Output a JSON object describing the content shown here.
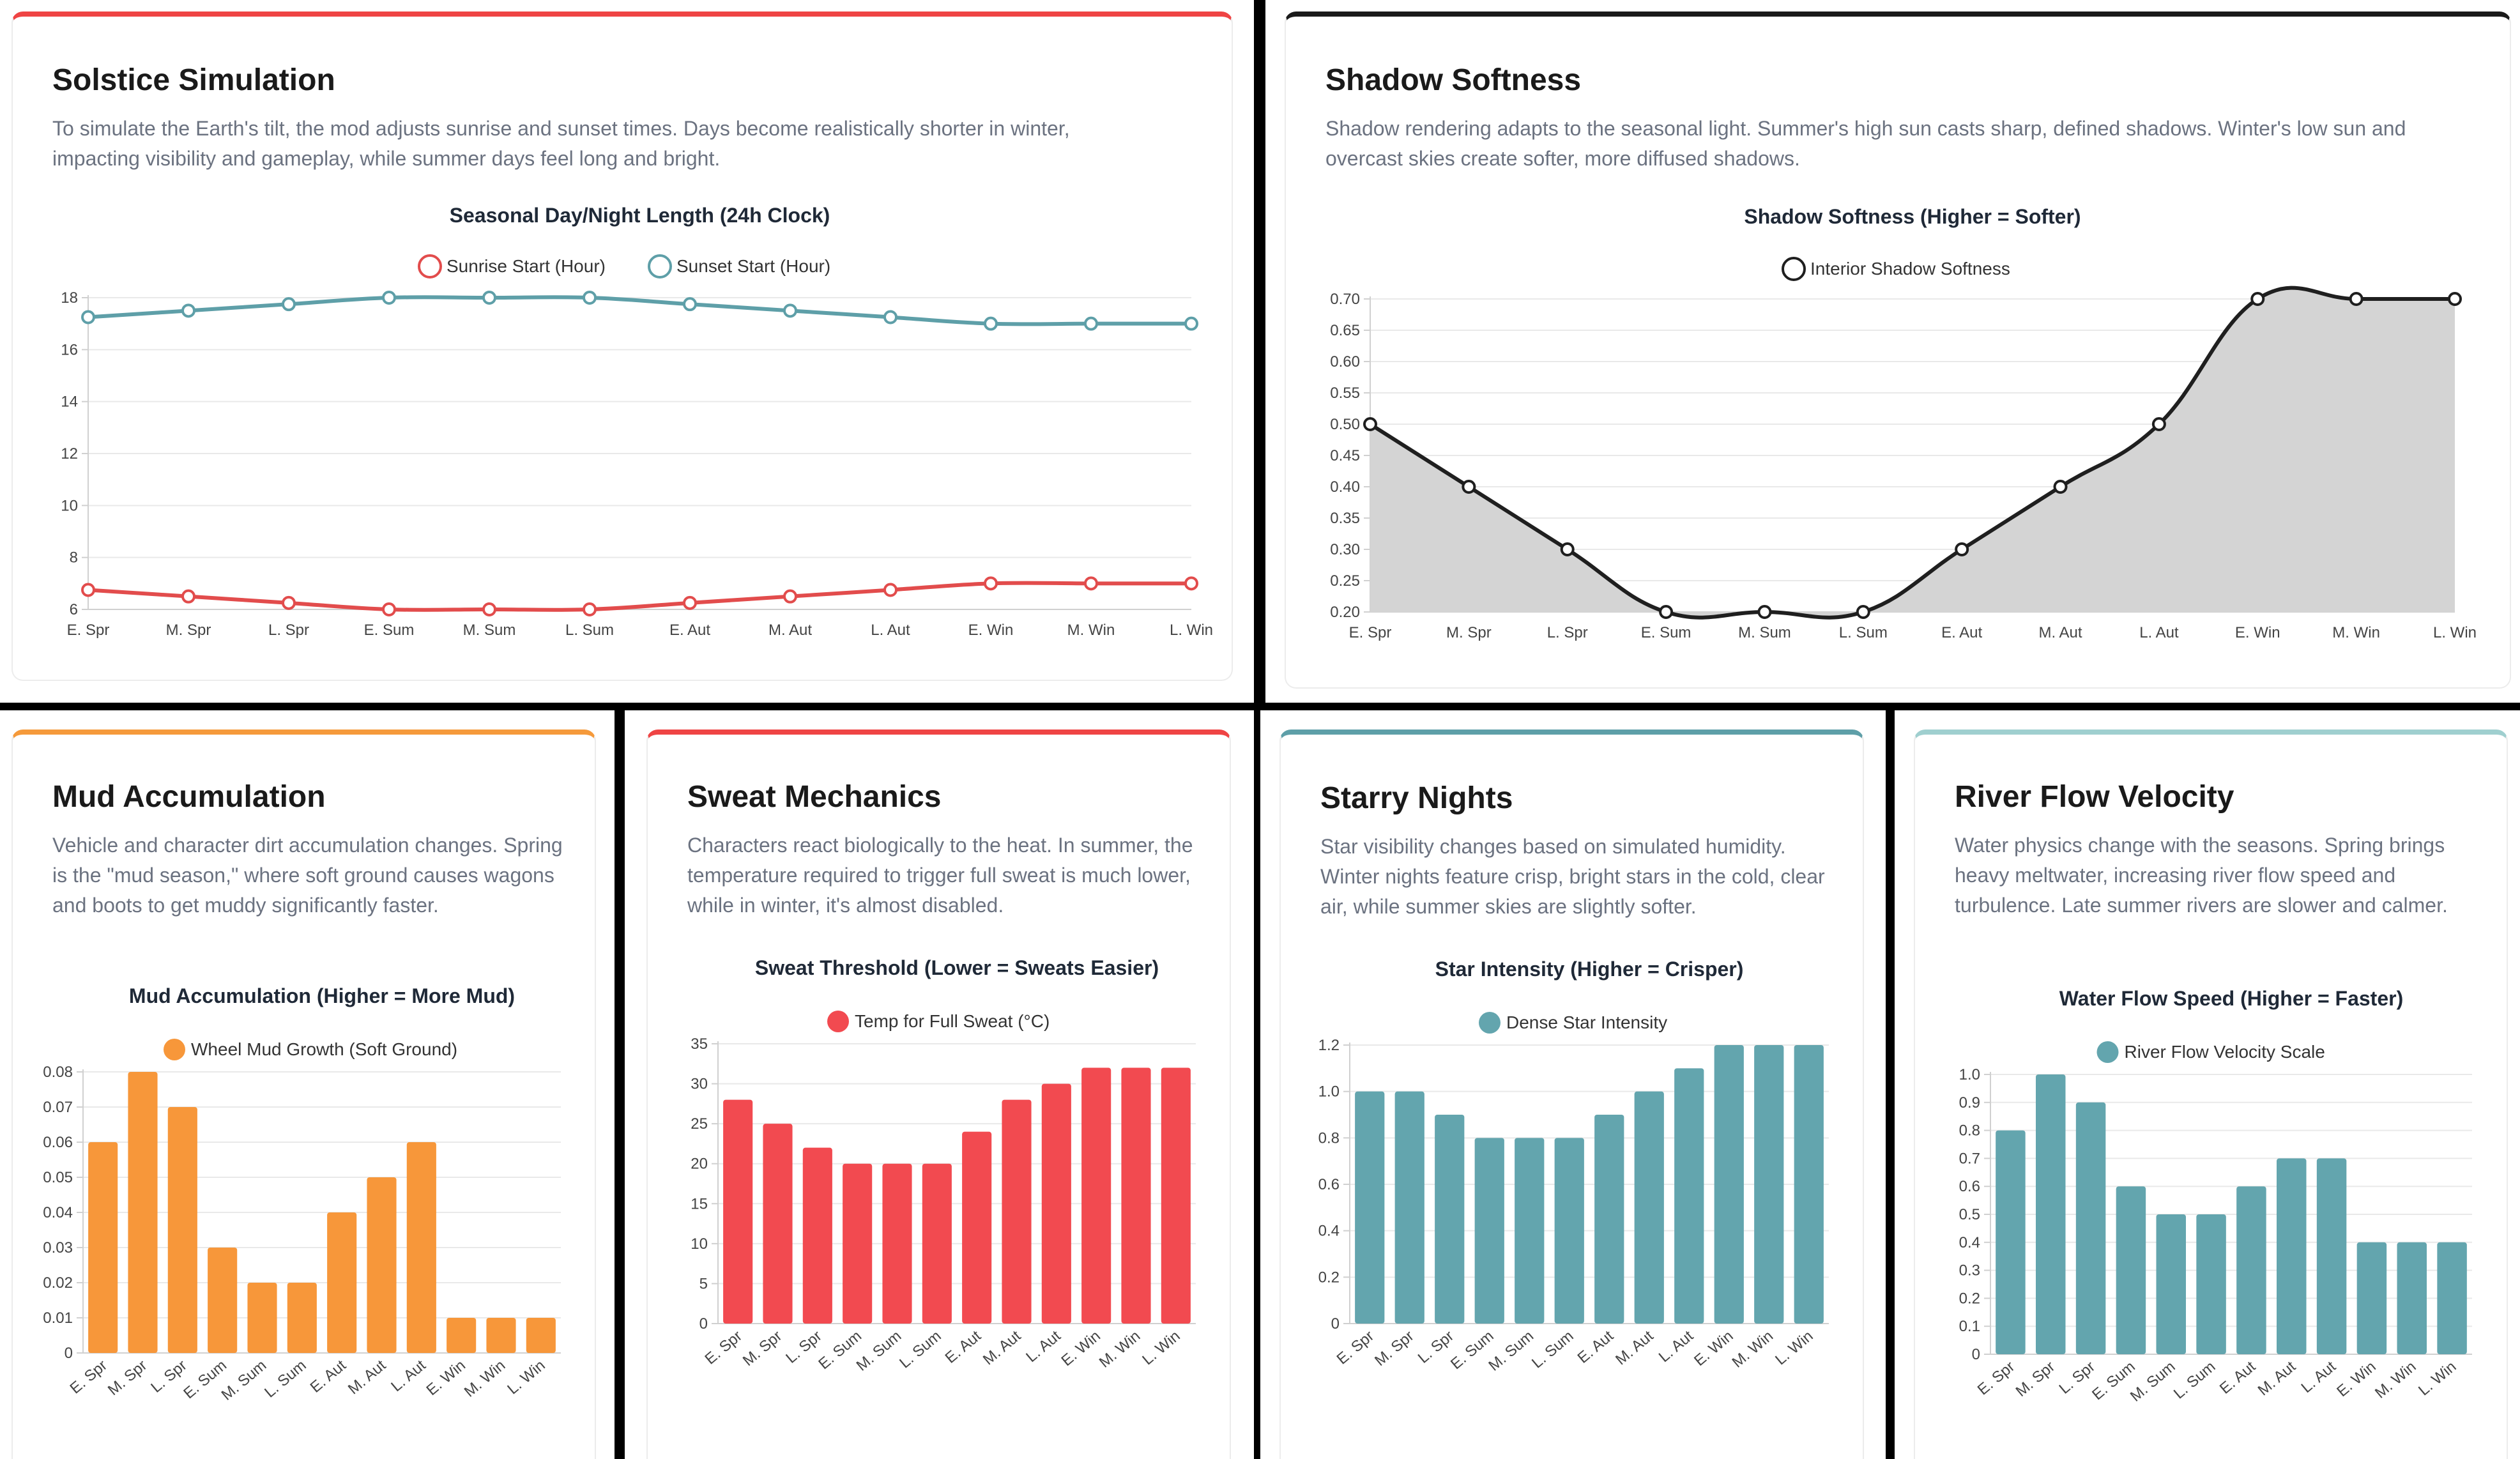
{
  "seasons": [
    "E. Spr",
    "M. Spr",
    "L. Spr",
    "E. Sum",
    "M. Sum",
    "L. Sum",
    "E. Aut",
    "M. Aut",
    "L. Aut",
    "E. Win",
    "M. Win",
    "L. Win"
  ],
  "cards": [
    {
      "title": "Solstice Simulation",
      "description": "To simulate the Earth's tilt, the mod adjusts sunrise and sunset times. Days become realistically shorter in winter, impacting visibility and gameplay, while summer days feel long and bright.",
      "accent": "#ef4444",
      "chart_data": {
        "type": "line",
        "title": "Seasonal Day/Night Length (24h Clock)",
        "categories": [
          "E. Spr",
          "M. Spr",
          "L. Spr",
          "E. Sum",
          "M. Sum",
          "L. Sum",
          "E. Aut",
          "M. Aut",
          "L. Aut",
          "E. Win",
          "M. Win",
          "L. Win"
        ],
        "series": [
          {
            "name": "Sunrise Start (Hour)",
            "values": [
              6.75,
              6.5,
              6.25,
              6,
              6,
              6,
              6.25,
              6.5,
              6.75,
              7,
              7,
              7
            ],
            "color": "#e24c4c"
          },
          {
            "name": "Sunset Start (Hour)",
            "values": [
              17.25,
              17.5,
              17.75,
              18,
              18,
              18,
              17.75,
              17.5,
              17.25,
              17,
              17,
              17
            ],
            "color": "#5e9fa8"
          }
        ],
        "ylim": [
          6,
          18
        ],
        "yticks": [
          "6",
          "8",
          "10",
          "12",
          "14",
          "16",
          "18"
        ],
        "legend": "top",
        "grid": true
      }
    },
    {
      "title": "Shadow Softness",
      "description": "Shadow rendering adapts to the seasonal light. Summer's high sun casts sharp, defined shadows. Winter's low sun and overcast skies create softer, more diffused shadows.",
      "accent": "#1a1a1a",
      "chart_data": {
        "type": "area",
        "title": "Shadow Softness (Higher = Softer)",
        "categories": [
          "E. Spr",
          "M. Spr",
          "L. Spr",
          "E. Sum",
          "M. Sum",
          "L. Sum",
          "E. Aut",
          "M. Aut",
          "L. Aut",
          "E. Win",
          "M. Win",
          "L. Win"
        ],
        "series": [
          {
            "name": "Interior Shadow Softness",
            "values": [
              0.5,
              0.4,
              0.3,
              0.2,
              0.2,
              0.2,
              0.3,
              0.4,
              0.5,
              0.7,
              0.7,
              0.7
            ],
            "color": "#1f1f1f",
            "fill": "#d4d4d4"
          }
        ],
        "ylim": [
          0.2,
          0.7
        ],
        "yticks": [
          "0.20",
          "0.25",
          "0.30",
          "0.35",
          "0.40",
          "0.45",
          "0.50",
          "0.55",
          "0.60",
          "0.65",
          "0.70"
        ],
        "legend": "top",
        "grid": true
      }
    },
    {
      "title": "Mud Accumulation",
      "description": "Vehicle and character dirt accumulation changes. Spring is the \"mud season,\" where soft ground causes wagons and boots to get muddy significantly faster.",
      "accent": "#f59a3b",
      "chart_data": {
        "type": "bar",
        "title": "Mud Accumulation (Higher = More Mud)",
        "categories": [
          "E. Spr",
          "M. Spr",
          "L. Spr",
          "E. Sum",
          "M. Sum",
          "L. Sum",
          "E. Aut",
          "M. Aut",
          "L. Aut",
          "E. Win",
          "M. Win",
          "L. Win"
        ],
        "series": [
          {
            "name": "Wheel Mud Growth (Soft Ground)",
            "values": [
              0.06,
              0.08,
              0.07,
              0.03,
              0.02,
              0.02,
              0.04,
              0.05,
              0.06,
              0.01,
              0.01,
              0.01
            ],
            "color": "#f7973a"
          }
        ],
        "ylim": [
          0,
          0.08
        ],
        "yticks": [
          "0",
          "0.01",
          "0.02",
          "0.03",
          "0.04",
          "0.05",
          "0.06",
          "0.07",
          "0.08"
        ],
        "legend": "top",
        "grid": true
      }
    },
    {
      "title": "Sweat Mechanics",
      "description": "Characters react biologically to the heat. In summer, the temperature required to trigger full sweat is much lower, while in winter, it's almost disabled.",
      "accent": "#ef4444",
      "chart_data": {
        "type": "bar",
        "title": "Sweat Threshold (Lower = Sweats Easier)",
        "categories": [
          "E. Spr",
          "M. Spr",
          "L. Spr",
          "E. Sum",
          "M. Sum",
          "L. Sum",
          "E. Aut",
          "M. Aut",
          "L. Aut",
          "E. Win",
          "M. Win",
          "L. Win"
        ],
        "series": [
          {
            "name": "Temp for Full Sweat (°C)",
            "values": [
              28,
              25,
              22,
              20,
              20,
              20,
              24,
              28,
              30,
              32,
              32,
              32
            ],
            "color": "#f24a50"
          }
        ],
        "ylim": [
          0,
          35
        ],
        "yticks": [
          "0",
          "5",
          "10",
          "15",
          "20",
          "25",
          "30",
          "35"
        ],
        "legend": "top",
        "grid": true
      }
    },
    {
      "title": "Starry Nights",
      "description": "Star visibility changes based on simulated humidity. Winter nights feature crisp, bright stars in the cold, clear air, while summer skies are slightly softer.",
      "accent": "#5e9fa8",
      "chart_data": {
        "type": "bar",
        "title": "Star Intensity (Higher = Crisper)",
        "categories": [
          "E. Spr",
          "M. Spr",
          "L. Spr",
          "E. Sum",
          "M. Sum",
          "L. Sum",
          "E. Aut",
          "M. Aut",
          "L. Aut",
          "E. Win",
          "M. Win",
          "L. Win"
        ],
        "series": [
          {
            "name": "Dense Star Intensity",
            "values": [
              1.0,
              1.0,
              0.9,
              0.8,
              0.8,
              0.8,
              0.9,
              1.0,
              1.1,
              1.2,
              1.2,
              1.2
            ],
            "color": "#63a5ae"
          }
        ],
        "ylim": [
          0,
          1.2
        ],
        "yticks": [
          "0",
          "0.2",
          "0.4",
          "0.6",
          "0.8",
          "1.0",
          "1.2"
        ],
        "legend": "top",
        "grid": true
      }
    },
    {
      "title": "River Flow Velocity",
      "description": "Water physics change with the seasons. Spring brings heavy meltwater, increasing river flow speed and turbulence. Late summer rivers are slower and calmer.",
      "accent": "#9fcfcf",
      "chart_data": {
        "type": "bar",
        "title": "Water Flow Speed (Higher = Faster)",
        "categories": [
          "E. Spr",
          "M. Spr",
          "L. Spr",
          "E. Sum",
          "M. Sum",
          "L. Sum",
          "E. Aut",
          "M. Aut",
          "L. Aut",
          "E. Win",
          "M. Win",
          "L. Win"
        ],
        "series": [
          {
            "name": "River Flow Velocity Scale",
            "values": [
              0.8,
              1.0,
              0.9,
              0.6,
              0.5,
              0.5,
              0.6,
              0.7,
              0.7,
              0.4,
              0.4,
              0.4
            ],
            "color": "#63a5ae"
          }
        ],
        "ylim": [
          0,
          1.0
        ],
        "yticks": [
          "0",
          "0.1",
          "0.2",
          "0.3",
          "0.4",
          "0.5",
          "0.6",
          "0.7",
          "0.8",
          "0.9",
          "1.0"
        ],
        "legend": "top",
        "grid": true
      }
    }
  ]
}
